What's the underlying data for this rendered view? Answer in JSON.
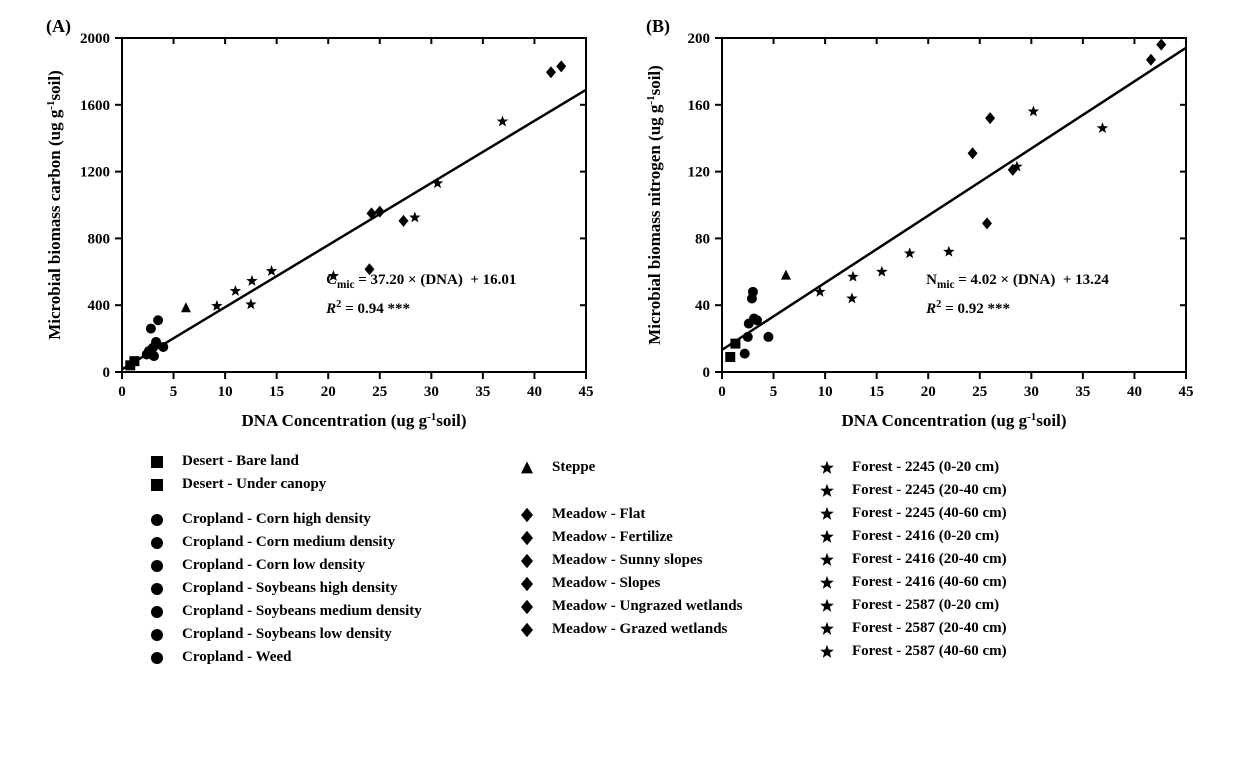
{
  "figure": {
    "panels": [
      {
        "id": "A",
        "label": "(A)",
        "xlabel": "DNA Concentration (ug g⁻¹soil)",
        "ylabel": "Microbial biomass carbon (ug g⁻¹soil)",
        "xlim": [
          0,
          45
        ],
        "ylim": [
          0,
          2000
        ],
        "xticks": [
          0,
          5,
          10,
          15,
          20,
          25,
          30,
          35,
          40,
          45
        ],
        "yticks": [
          0,
          400,
          800,
          1200,
          1600,
          2000
        ],
        "equation": "Cₘᵢ꜀ = 37.20 × (DNA)  + 16.01",
        "r2": "R² = 0.94 ***",
        "r2_letter": "R",
        "regression": {
          "slope": 37.2,
          "intercept": 16.01
        },
        "points": [
          {
            "x": 0.8,
            "y": 40,
            "m": "square"
          },
          {
            "x": 1.2,
            "y": 65,
            "m": "square"
          },
          {
            "x": 2.4,
            "y": 105,
            "m": "circle"
          },
          {
            "x": 2.6,
            "y": 125,
            "m": "circle"
          },
          {
            "x": 2.8,
            "y": 260,
            "m": "circle"
          },
          {
            "x": 3.0,
            "y": 145,
            "m": "circle"
          },
          {
            "x": 3.1,
            "y": 95,
            "m": "circle"
          },
          {
            "x": 3.3,
            "y": 180,
            "m": "circle"
          },
          {
            "x": 3.5,
            "y": 310,
            "m": "circle"
          },
          {
            "x": 4.0,
            "y": 150,
            "m": "circle"
          },
          {
            "x": 6.2,
            "y": 385,
            "m": "triangle"
          },
          {
            "x": 9.2,
            "y": 395,
            "m": "star"
          },
          {
            "x": 11.0,
            "y": 485,
            "m": "star"
          },
          {
            "x": 12.6,
            "y": 545,
            "m": "star"
          },
          {
            "x": 12.5,
            "y": 405,
            "m": "star"
          },
          {
            "x": 14.5,
            "y": 605,
            "m": "star"
          },
          {
            "x": 20.5,
            "y": 575,
            "m": "star"
          },
          {
            "x": 24.2,
            "y": 950,
            "m": "diamond"
          },
          {
            "x": 24.0,
            "y": 615,
            "m": "diamond"
          },
          {
            "x": 25.0,
            "y": 960,
            "m": "diamond"
          },
          {
            "x": 27.3,
            "y": 905,
            "m": "diamond"
          },
          {
            "x": 28.4,
            "y": 925,
            "m": "star"
          },
          {
            "x": 30.6,
            "y": 1130,
            "m": "star"
          },
          {
            "x": 36.9,
            "y": 1500,
            "m": "star"
          },
          {
            "x": 41.6,
            "y": 1795,
            "m": "diamond"
          },
          {
            "x": 42.6,
            "y": 1830,
            "m": "diamond"
          }
        ]
      },
      {
        "id": "B",
        "label": "(B)",
        "xlabel": "DNA Concentration (ug g⁻¹soil)",
        "ylabel": "Microbial biomass nitrogen (ug g⁻¹soil)",
        "xlim": [
          0,
          45
        ],
        "ylim": [
          0,
          200
        ],
        "xticks": [
          0,
          5,
          10,
          15,
          20,
          25,
          30,
          35,
          40,
          45
        ],
        "yticks": [
          0,
          40,
          80,
          120,
          160,
          200
        ],
        "equation": "Nₘᵢ꜀ = 4.02 × (DNA)  + 13.24",
        "r2": "R² = 0.92 ***",
        "r2_letter": "R",
        "regression": {
          "slope": 4.02,
          "intercept": 13.24
        },
        "points": [
          {
            "x": 0.8,
            "y": 9,
            "m": "square"
          },
          {
            "x": 1.3,
            "y": 17,
            "m": "square"
          },
          {
            "x": 2.2,
            "y": 11,
            "m": "circle"
          },
          {
            "x": 2.5,
            "y": 21,
            "m": "circle"
          },
          {
            "x": 2.6,
            "y": 29,
            "m": "circle"
          },
          {
            "x": 2.9,
            "y": 44,
            "m": "circle"
          },
          {
            "x": 3.0,
            "y": 48,
            "m": "circle"
          },
          {
            "x": 3.1,
            "y": 32,
            "m": "circle"
          },
          {
            "x": 3.4,
            "y": 31,
            "m": "circle"
          },
          {
            "x": 4.5,
            "y": 21,
            "m": "circle"
          },
          {
            "x": 6.2,
            "y": 58,
            "m": "triangle"
          },
          {
            "x": 9.5,
            "y": 48,
            "m": "star"
          },
          {
            "x": 12.6,
            "y": 44,
            "m": "star"
          },
          {
            "x": 12.7,
            "y": 57,
            "m": "star"
          },
          {
            "x": 15.5,
            "y": 60,
            "m": "star"
          },
          {
            "x": 18.2,
            "y": 71,
            "m": "star"
          },
          {
            "x": 22.0,
            "y": 72,
            "m": "star"
          },
          {
            "x": 24.3,
            "y": 131,
            "m": "diamond"
          },
          {
            "x": 25.7,
            "y": 89,
            "m": "diamond"
          },
          {
            "x": 26.0,
            "y": 152,
            "m": "diamond"
          },
          {
            "x": 28.2,
            "y": 121,
            "m": "diamond"
          },
          {
            "x": 28.6,
            "y": 123,
            "m": "star"
          },
          {
            "x": 30.2,
            "y": 156,
            "m": "star"
          },
          {
            "x": 36.9,
            "y": 146,
            "m": "star"
          },
          {
            "x": 41.6,
            "y": 187,
            "m": "diamond"
          },
          {
            "x": 42.6,
            "y": 196,
            "m": "diamond"
          }
        ]
      }
    ],
    "style": {
      "axis_linewidth": 2.0,
      "tick_fontsize": 15,
      "label_fontsize": 17,
      "marker_size": 10,
      "marker_color": "#000000",
      "line_color": "#000000",
      "line_width": 2.5,
      "background": "#ffffff"
    }
  },
  "legend": {
    "col1": [
      {
        "m": "square",
        "label": "Desert - Bare land"
      },
      {
        "m": "square",
        "label": "Desert - Under canopy"
      },
      {
        "m": "spacer",
        "label": ""
      },
      {
        "m": "circle",
        "label": "Cropland - Corn high density"
      },
      {
        "m": "circle",
        "label": "Cropland - Corn medium density"
      },
      {
        "m": "circle",
        "label": "Cropland - Corn low density"
      },
      {
        "m": "circle",
        "label": "Cropland - Soybeans high density"
      },
      {
        "m": "circle",
        "label": "Cropland - Soybeans medium density"
      },
      {
        "m": "circle",
        "label": "Cropland - Soybeans low density"
      },
      {
        "m": "circle",
        "label": "Cropland - Weed"
      }
    ],
    "col2": [
      {
        "m": "triangle",
        "label": "Steppe"
      },
      {
        "m": "spacer",
        "label": ""
      },
      {
        "m": "spacer",
        "label": ""
      },
      {
        "m": "diamond",
        "label": "Meadow - Flat"
      },
      {
        "m": "diamond",
        "label": "Meadow - Fertilize"
      },
      {
        "m": "diamond",
        "label": "Meadow - Sunny slopes"
      },
      {
        "m": "diamond",
        "label": "Meadow - Slopes"
      },
      {
        "m": "diamond",
        "label": "Meadow - Ungrazed wetlands"
      },
      {
        "m": "diamond",
        "label": "Meadow - Grazed wetlands"
      }
    ],
    "col3": [
      {
        "m": "star",
        "label": "Forest - 2245 (0-20 cm)"
      },
      {
        "m": "star",
        "label": "Forest - 2245 (20-40 cm)"
      },
      {
        "m": "star",
        "label": "Forest - 2245 (40-60 cm)"
      },
      {
        "m": "star",
        "label": "Forest - 2416 (0-20 cm)"
      },
      {
        "m": "star",
        "label": "Forest - 2416 (20-40 cm)"
      },
      {
        "m": "star",
        "label": "Forest - 2416 (40-60 cm)"
      },
      {
        "m": "star",
        "label": "Forest - 2587 (0-20 cm)"
      },
      {
        "m": "star",
        "label": "Forest - 2587 (20-40 cm)"
      },
      {
        "m": "star",
        "label": "Forest - 2587 (40-60 cm)"
      }
    ]
  }
}
